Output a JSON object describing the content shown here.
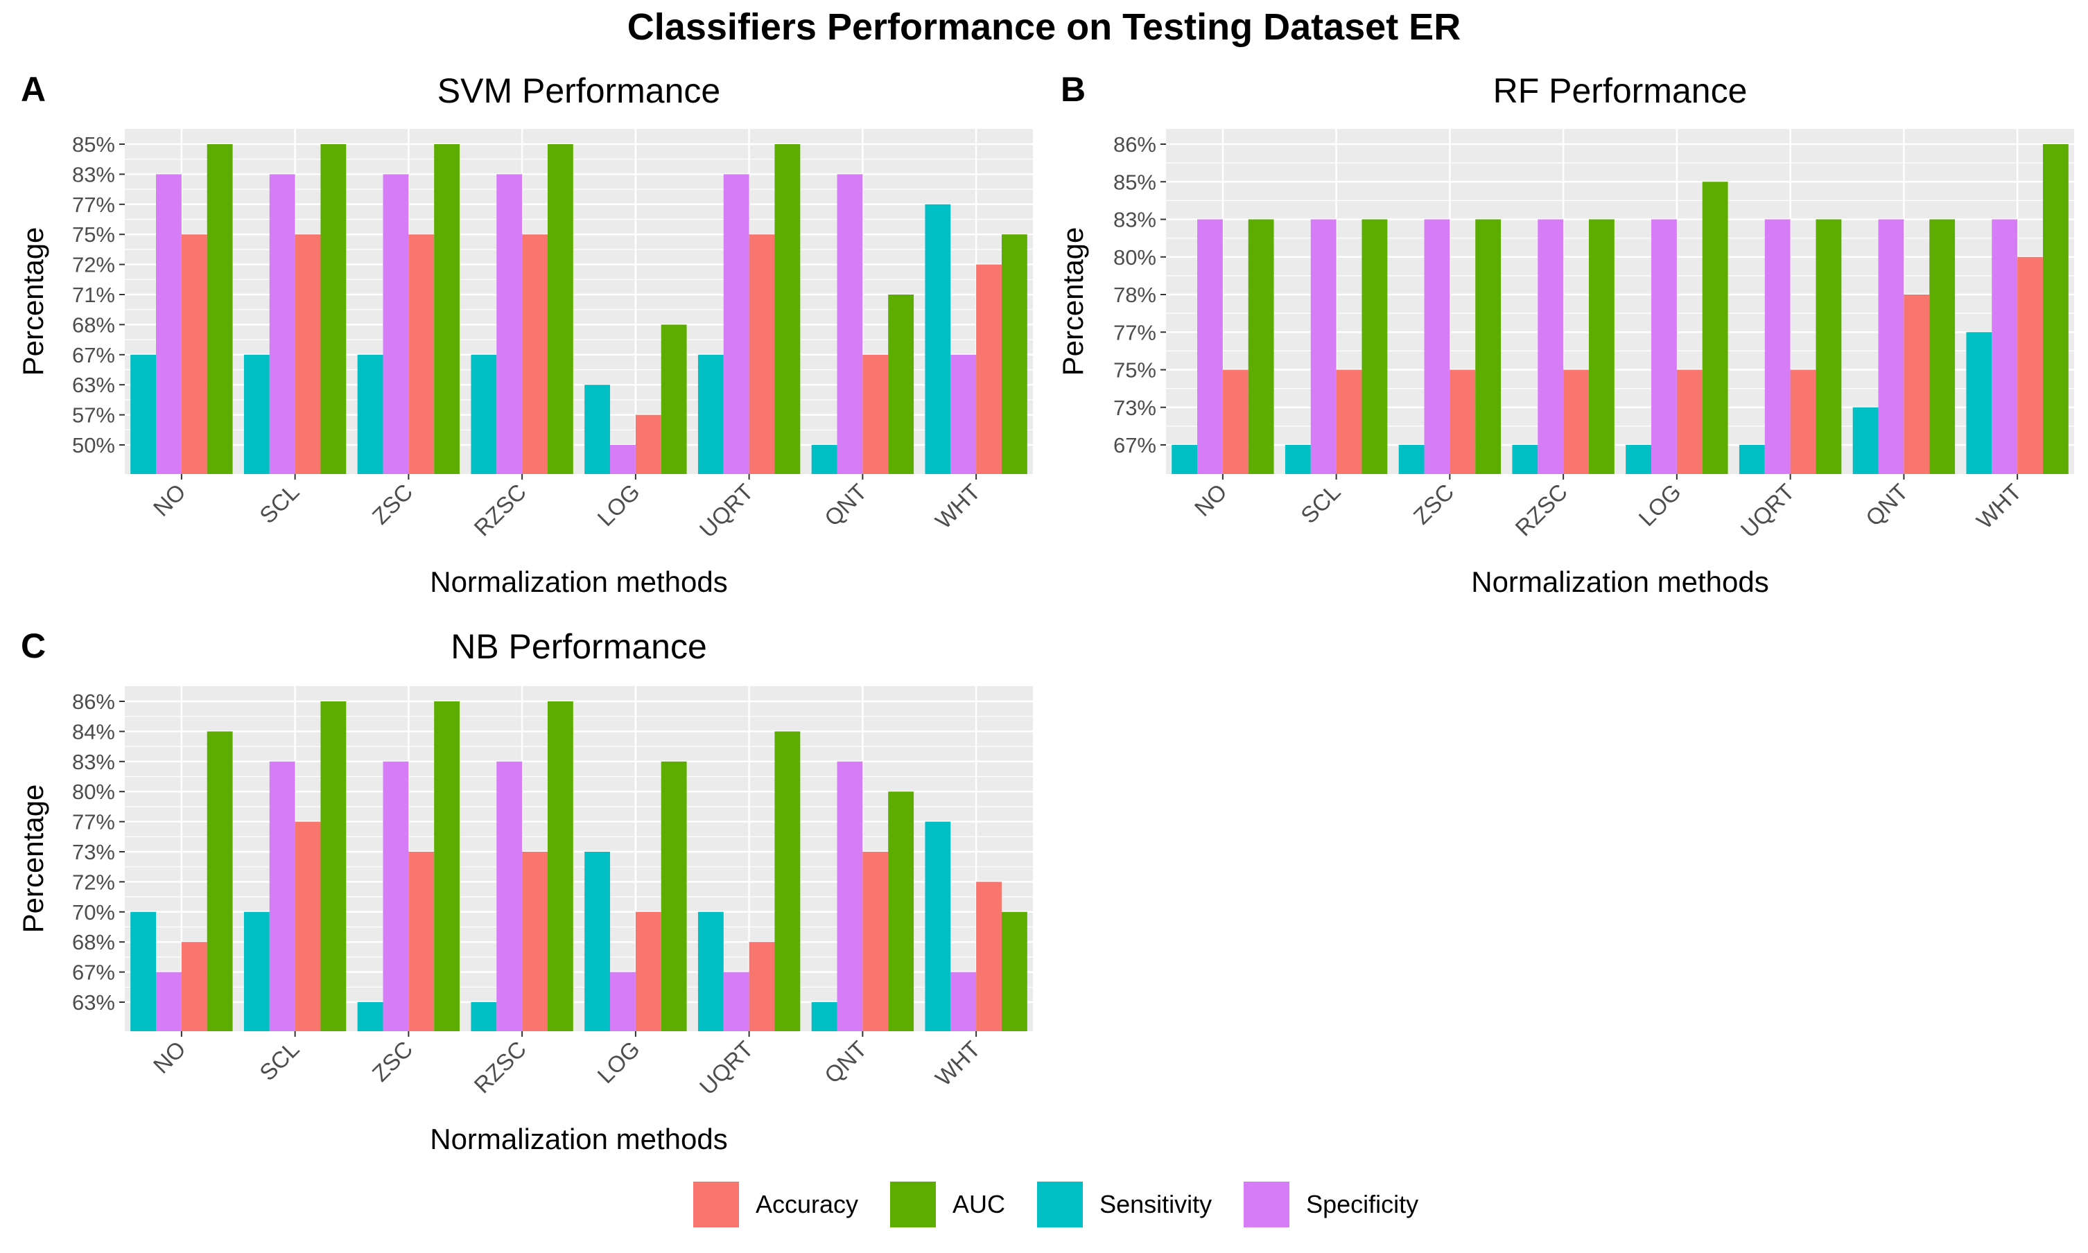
{
  "title": "Classifiers Performance on Testing Dataset ER",
  "colors": {
    "Accuracy": "#F8766D",
    "AUC": "#5DAD00",
    "Sensitivity": "#00BFC4",
    "Specificity": "#D77CF7",
    "panel_bg": "#EBEBEB",
    "grid": "#FFFFFF"
  },
  "legend": [
    "Accuracy",
    "AUC",
    "Sensitivity",
    "Specificity"
  ],
  "chart_data": [
    {
      "letter": "A",
      "type": "bar",
      "title": "SVM Performance",
      "xlabel": "Normalization methods",
      "ylabel": "Percentage",
      "categories": [
        "NO",
        "SCL",
        "ZSC",
        "RZSC",
        "LOG",
        "UQRT",
        "QNT",
        "WHT"
      ],
      "y_ticks": [
        "50%",
        "57%",
        "63%",
        "67%",
        "68%",
        "71%",
        "72%",
        "75%",
        "77%",
        "83%",
        "85%"
      ],
      "series": [
        {
          "name": "Sensitivity",
          "values": [
            "67%",
            "67%",
            "67%",
            "67%",
            "63%",
            "67%",
            "50%",
            "77%"
          ]
        },
        {
          "name": "Specificity",
          "values": [
            "83%",
            "83%",
            "83%",
            "83%",
            "50%",
            "83%",
            "83%",
            "67%"
          ]
        },
        {
          "name": "Accuracy",
          "values": [
            "75%",
            "75%",
            "75%",
            "75%",
            "57%",
            "75%",
            "67%",
            "72%"
          ]
        },
        {
          "name": "AUC",
          "values": [
            "85%",
            "85%",
            "85%",
            "85%",
            "68%",
            "85%",
            "71%",
            "75%"
          ]
        }
      ]
    },
    {
      "letter": "B",
      "type": "bar",
      "title": "RF Performance",
      "xlabel": "Normalization methods",
      "ylabel": "Percentage",
      "categories": [
        "NO",
        "SCL",
        "ZSC",
        "RZSC",
        "LOG",
        "UQRT",
        "QNT",
        "WHT"
      ],
      "y_ticks": [
        "67%",
        "73%",
        "75%",
        "77%",
        "78%",
        "80%",
        "83%",
        "85%",
        "86%"
      ],
      "series": [
        {
          "name": "Sensitivity",
          "values": [
            "67%",
            "67%",
            "67%",
            "67%",
            "67%",
            "67%",
            "73%",
            "77%"
          ]
        },
        {
          "name": "Specificity",
          "values": [
            "83%",
            "83%",
            "83%",
            "83%",
            "83%",
            "83%",
            "83%",
            "83%"
          ]
        },
        {
          "name": "Accuracy",
          "values": [
            "75%",
            "75%",
            "75%",
            "75%",
            "75%",
            "75%",
            "78%",
            "80%"
          ]
        },
        {
          "name": "AUC",
          "values": [
            "83%",
            "83%",
            "83%",
            "83%",
            "85%",
            "83%",
            "83%",
            "86%"
          ]
        }
      ]
    },
    {
      "letter": "C",
      "type": "bar",
      "title": "NB Performance",
      "xlabel": "Normalization methods",
      "ylabel": "Percentage",
      "categories": [
        "NO",
        "SCL",
        "ZSC",
        "RZSC",
        "LOG",
        "UQRT",
        "QNT",
        "WHT"
      ],
      "y_ticks": [
        "63%",
        "67%",
        "68%",
        "70%",
        "72%",
        "73%",
        "77%",
        "80%",
        "83%",
        "84%",
        "86%"
      ],
      "series": [
        {
          "name": "Sensitivity",
          "values": [
            "70%",
            "70%",
            "63%",
            "63%",
            "73%",
            "70%",
            "63%",
            "77%"
          ]
        },
        {
          "name": "Specificity",
          "values": [
            "67%",
            "83%",
            "83%",
            "83%",
            "67%",
            "67%",
            "83%",
            "67%"
          ]
        },
        {
          "name": "Accuracy",
          "values": [
            "68%",
            "77%",
            "73%",
            "73%",
            "70%",
            "68%",
            "73%",
            "72%"
          ]
        },
        {
          "name": "AUC",
          "values": [
            "84%",
            "86%",
            "86%",
            "86%",
            "83%",
            "84%",
            "80%",
            "70%"
          ]
        }
      ]
    }
  ]
}
